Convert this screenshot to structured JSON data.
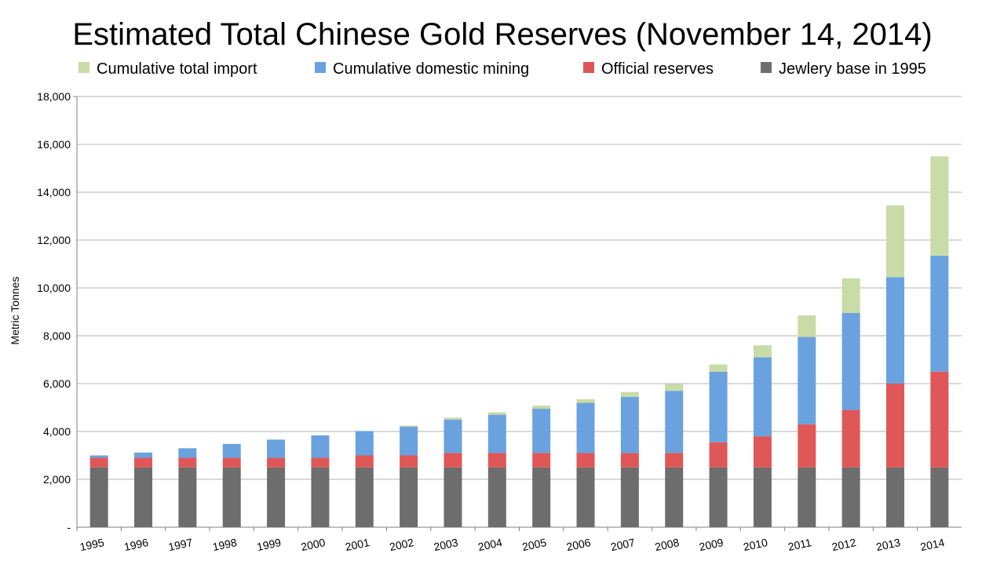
{
  "chart_data": {
    "type": "bar",
    "stacked": true,
    "title": "Estimated Total Chinese Gold Reserves (November 14, 2014)",
    "xlabel": "",
    "ylabel": "Metric Tonnes",
    "ylim": [
      0,
      18000
    ],
    "yticks": [
      {
        "value": 0,
        "label": "-"
      },
      {
        "value": 2000,
        "label": "2,000"
      },
      {
        "value": 4000,
        "label": "4,000"
      },
      {
        "value": 6000,
        "label": "6,000"
      },
      {
        "value": 8000,
        "label": "8,000"
      },
      {
        "value": 10000,
        "label": "10,000"
      },
      {
        "value": 12000,
        "label": "12,000"
      },
      {
        "value": 14000,
        "label": "14,000"
      },
      {
        "value": 16000,
        "label": "16,000"
      },
      {
        "value": 18000,
        "label": "18,000"
      }
    ],
    "grid": true,
    "legend_position": "top",
    "categories": [
      "1995",
      "1996",
      "1997",
      "1998",
      "1999",
      "2000",
      "2001",
      "2002",
      "2003",
      "2004",
      "2005",
      "2006",
      "2007",
      "2008",
      "2009",
      "2010",
      "2011",
      "2012",
      "2013",
      "2014"
    ],
    "series": [
      {
        "name": "Jewlery base in 1995",
        "color": "#6d6d6d",
        "values": [
          2500,
          2500,
          2500,
          2500,
          2500,
          2500,
          2500,
          2500,
          2500,
          2500,
          2500,
          2500,
          2500,
          2500,
          2500,
          2500,
          2500,
          2500,
          2500,
          2500
        ]
      },
      {
        "name": "Official reserves",
        "color": "#e05757",
        "values": [
          400,
          400,
          400,
          400,
          400,
          400,
          500,
          500,
          600,
          600,
          600,
          600,
          600,
          600,
          1050,
          1300,
          1800,
          2400,
          3500,
          4000
        ]
      },
      {
        "name": "Cumulative domestic mining",
        "color": "#6aa2df",
        "values": [
          100,
          220,
          400,
          580,
          760,
          940,
          1020,
          1200,
          1400,
          1600,
          1850,
          2100,
          2350,
          2600,
          2950,
          3300,
          3650,
          4050,
          4450,
          4850
        ]
      },
      {
        "name": "Cumulative total import",
        "color": "#c9dba6",
        "values": [
          0,
          0,
          0,
          0,
          0,
          0,
          0,
          50,
          80,
          100,
          130,
          150,
          200,
          280,
          300,
          500,
          900,
          1450,
          3000,
          4150
        ]
      }
    ],
    "legend_order": [
      "Cumulative total import",
      "Cumulative domestic mining",
      "Official reserves",
      "Jewlery base in 1995"
    ]
  }
}
